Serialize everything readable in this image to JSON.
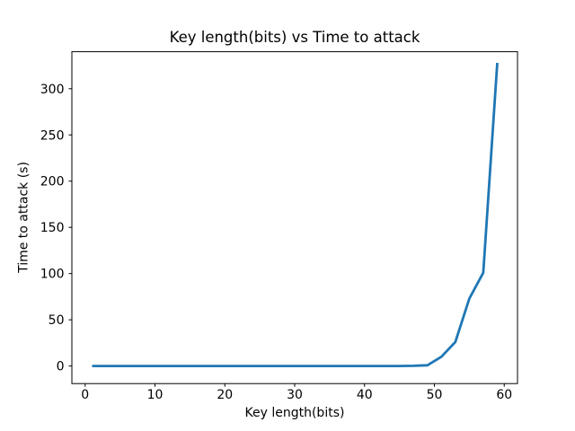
{
  "figure": {
    "background": "#ffffff",
    "text_color": "#000000"
  },
  "chart_data": {
    "type": "line",
    "title": "Key length(bits) vs Time to attack",
    "xlabel": "Key length(bits)",
    "ylabel": "Time to attack (s)",
    "x": [
      1,
      3,
      5,
      7,
      9,
      11,
      13,
      15,
      17,
      19,
      21,
      23,
      25,
      27,
      29,
      31,
      33,
      35,
      37,
      39,
      41,
      43,
      45,
      47,
      49,
      51,
      53,
      55,
      57,
      59
    ],
    "y": [
      0,
      0,
      0,
      0,
      0,
      0,
      0,
      0,
      0,
      0,
      0,
      0,
      0,
      0,
      0,
      0,
      0,
      0,
      0,
      0,
      0,
      0,
      0.05,
      0.2,
      0.8,
      10,
      26,
      73,
      101,
      328
    ],
    "xticks": [
      0,
      10,
      20,
      30,
      40,
      50,
      60
    ],
    "yticks": [
      0,
      50,
      100,
      150,
      200,
      250,
      300
    ],
    "xlim": [
      -1.9,
      61.9
    ],
    "ylim": [
      -19,
      340
    ],
    "grid": false,
    "legend": null,
    "line_color": "#1f77b4",
    "line_width": 2.8,
    "spine_color": "#000000",
    "tick_font_size": 14
  }
}
